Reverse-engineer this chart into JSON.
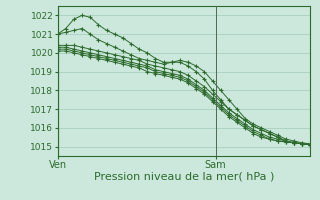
{
  "title": "",
  "xlabel": "Pression niveau de la mer( hPa )",
  "ylabel": "",
  "background_color": "#cce8dc",
  "grid_color": "#aacfbf",
  "line_color": "#2d6a2d",
  "ylim": [
    1014.5,
    1022.5
  ],
  "xlim": [
    0,
    48
  ],
  "ven_x": 0,
  "sam_x": 30,
  "series": [
    [
      1021.0,
      1021.3,
      1021.8,
      1022.0,
      1021.9,
      1021.5,
      1021.2,
      1021.0,
      1020.8,
      1020.5,
      1020.2,
      1020.0,
      1019.7,
      1019.5,
      1019.5,
      1019.6,
      1019.5,
      1019.3,
      1019.0,
      1018.5,
      1018.0,
      1017.5,
      1017.0,
      1016.5,
      1016.2,
      1016.0,
      1015.8,
      1015.6,
      1015.4,
      1015.3,
      1015.2,
      1015.15
    ],
    [
      1021.0,
      1021.1,
      1021.2,
      1021.3,
      1021.0,
      1020.7,
      1020.5,
      1020.3,
      1020.1,
      1019.9,
      1019.7,
      1019.6,
      1019.5,
      1019.4,
      1019.5,
      1019.5,
      1019.3,
      1019.0,
      1018.6,
      1018.0,
      1017.5,
      1017.0,
      1016.7,
      1016.4,
      1016.1,
      1015.9,
      1015.7,
      1015.5,
      1015.3,
      1015.2,
      1015.15,
      1015.1
    ],
    [
      1020.4,
      1020.4,
      1020.4,
      1020.3,
      1020.2,
      1020.1,
      1020.0,
      1019.9,
      1019.8,
      1019.7,
      1019.6,
      1019.4,
      1019.3,
      1019.2,
      1019.1,
      1019.0,
      1018.8,
      1018.5,
      1018.2,
      1017.8,
      1017.4,
      1017.0,
      1016.7,
      1016.4,
      1016.1,
      1015.9,
      1015.7,
      1015.5,
      1015.3,
      1015.2,
      1015.15,
      1015.1
    ],
    [
      1020.3,
      1020.3,
      1020.2,
      1020.1,
      1020.0,
      1019.9,
      1019.8,
      1019.7,
      1019.6,
      1019.5,
      1019.4,
      1019.3,
      1019.1,
      1019.0,
      1018.9,
      1018.8,
      1018.6,
      1018.3,
      1018.0,
      1017.6,
      1017.2,
      1016.8,
      1016.5,
      1016.2,
      1015.9,
      1015.7,
      1015.5,
      1015.4,
      1015.3,
      1015.2,
      1015.15,
      1015.1
    ],
    [
      1020.2,
      1020.2,
      1020.1,
      1020.0,
      1019.9,
      1019.8,
      1019.7,
      1019.6,
      1019.5,
      1019.4,
      1019.3,
      1019.2,
      1019.0,
      1018.9,
      1018.8,
      1018.7,
      1018.5,
      1018.2,
      1017.9,
      1017.5,
      1017.1,
      1016.7,
      1016.4,
      1016.1,
      1015.8,
      1015.6,
      1015.4,
      1015.3,
      1015.25,
      1015.2,
      1015.15,
      1015.1
    ],
    [
      1020.1,
      1020.1,
      1020.0,
      1019.9,
      1019.8,
      1019.7,
      1019.6,
      1019.5,
      1019.4,
      1019.3,
      1019.2,
      1019.0,
      1018.9,
      1018.8,
      1018.7,
      1018.6,
      1018.4,
      1018.1,
      1017.8,
      1017.4,
      1017.0,
      1016.6,
      1016.3,
      1016.0,
      1015.7,
      1015.5,
      1015.4,
      1015.3,
      1015.25,
      1015.2,
      1015.15,
      1015.1
    ]
  ],
  "ven_label": "Ven",
  "sam_label": "Sam",
  "tick_labels_y": [
    1015,
    1016,
    1017,
    1018,
    1019,
    1020,
    1021,
    1022
  ],
  "ytick_fontsize": 6.5,
  "xtick_fontsize": 7,
  "label_fontsize": 8
}
